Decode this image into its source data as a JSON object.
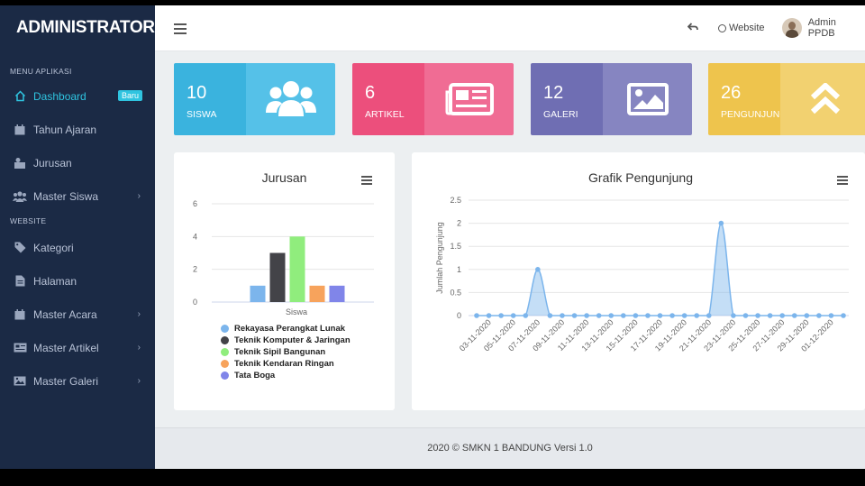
{
  "app": {
    "brand": "ADMINISTRATOR"
  },
  "sidebar": {
    "section1": "MENU APLIKASI",
    "section2": "WEBSITE",
    "items": [
      {
        "label": "Dashboard",
        "icon": "home-icon",
        "badge": "Baru",
        "active": true
      },
      {
        "label": "Tahun Ajaran",
        "icon": "calendar-icon"
      },
      {
        "label": "Jurusan",
        "icon": "users-icon"
      },
      {
        "label": "Master Siswa",
        "icon": "group-icon",
        "chevron": true
      },
      {
        "label": "Kategori",
        "icon": "tag-icon"
      },
      {
        "label": "Halaman",
        "icon": "file-icon"
      },
      {
        "label": "Master Acara",
        "icon": "calendar-icon",
        "chevron": true
      },
      {
        "label": "Master Artikel",
        "icon": "newspaper-icon",
        "chevron": true
      },
      {
        "label": "Master Galeri",
        "icon": "image-icon",
        "chevron": true
      }
    ]
  },
  "topbar": {
    "website": "Website",
    "user": "Admin PPDB"
  },
  "stats": [
    {
      "value": "10",
      "label": "SISWA",
      "icon": "users-icon",
      "color_left": "#3ab3de",
      "color_right": "#55c1e8"
    },
    {
      "value": "6",
      "label": "ARTIKEL",
      "icon": "newspaper-icon",
      "color_left": "#ec4f7c",
      "color_right": "#f06c94"
    },
    {
      "value": "12",
      "label": "GALERI",
      "icon": "image-icon",
      "color_left": "#6f6eb3",
      "color_right": "#8685c1"
    },
    {
      "value": "26",
      "label": "PENGUNJUNG",
      "icon": "chevrons-up-icon",
      "color_left": "#eec44d",
      "color_right": "#f2d170"
    }
  ],
  "chart_data": [
    {
      "type": "bar",
      "title": "Jurusan",
      "categories": [
        "Siswa"
      ],
      "ylim": [
        0,
        6
      ],
      "yticks": [
        0,
        2,
        4,
        6
      ],
      "series": [
        {
          "name": "Rekayasa Perangkat Lunak",
          "values": [
            1
          ],
          "color": "#7cb5ec"
        },
        {
          "name": "Teknik Komputer & Jaringan",
          "values": [
            3
          ],
          "color": "#434348"
        },
        {
          "name": "Teknik Sipil Bangunan",
          "values": [
            4
          ],
          "color": "#90ed7d"
        },
        {
          "name": "Teknik Kendaran Ringan",
          "values": [
            1
          ],
          "color": "#f7a35c"
        },
        {
          "name": "Tata Boga",
          "values": [
            1
          ],
          "color": "#8085e9"
        }
      ]
    },
    {
      "type": "area",
      "title": "Grafik Pengunjung",
      "ylabel": "Jumlah Pengunjung",
      "ylim": [
        0,
        2.5
      ],
      "yticks": [
        "0",
        "0.5",
        "1",
        "1.5",
        "2",
        "2.5"
      ],
      "x": [
        "02-11-2020",
        "03-11-2020",
        "04-11-2020",
        "05-11-2020",
        "06-11-2020",
        "07-11-2020",
        "08-11-2020",
        "09-11-2020",
        "10-11-2020",
        "11-11-2020",
        "12-11-2020",
        "13-11-2020",
        "14-11-2020",
        "15-11-2020",
        "16-11-2020",
        "17-11-2020",
        "18-11-2020",
        "19-11-2020",
        "20-11-2020",
        "21-11-2020",
        "22-11-2020",
        "23-11-2020",
        "24-11-2020",
        "25-11-2020",
        "26-11-2020",
        "27-11-2020",
        "28-11-2020",
        "29-11-2020",
        "30-11-2020",
        "01-12-2020",
        "02-12-2020"
      ],
      "xtick_labels": [
        "03-11-2020",
        "05-11-2020",
        "07-11-2020",
        "09-11-2020",
        "11-11-2020",
        "13-11-2020",
        "15-11-2020",
        "17-11-2020",
        "19-11-2020",
        "21-11-2020",
        "23-11-2020",
        "25-11-2020",
        "27-11-2020",
        "29-11-2020",
        "01-12-2020"
      ],
      "values": [
        0,
        0,
        0,
        0,
        0,
        1,
        0,
        0,
        0,
        0,
        0,
        0,
        0,
        0,
        0,
        0,
        0,
        0,
        0,
        0,
        2,
        0,
        0,
        0,
        0,
        0,
        0,
        0,
        0,
        0,
        0
      ],
      "color": "#7cb5ec"
    }
  ],
  "footer": {
    "text": "2020 © SMKN 1 BANDUNG Versi 1.0"
  }
}
